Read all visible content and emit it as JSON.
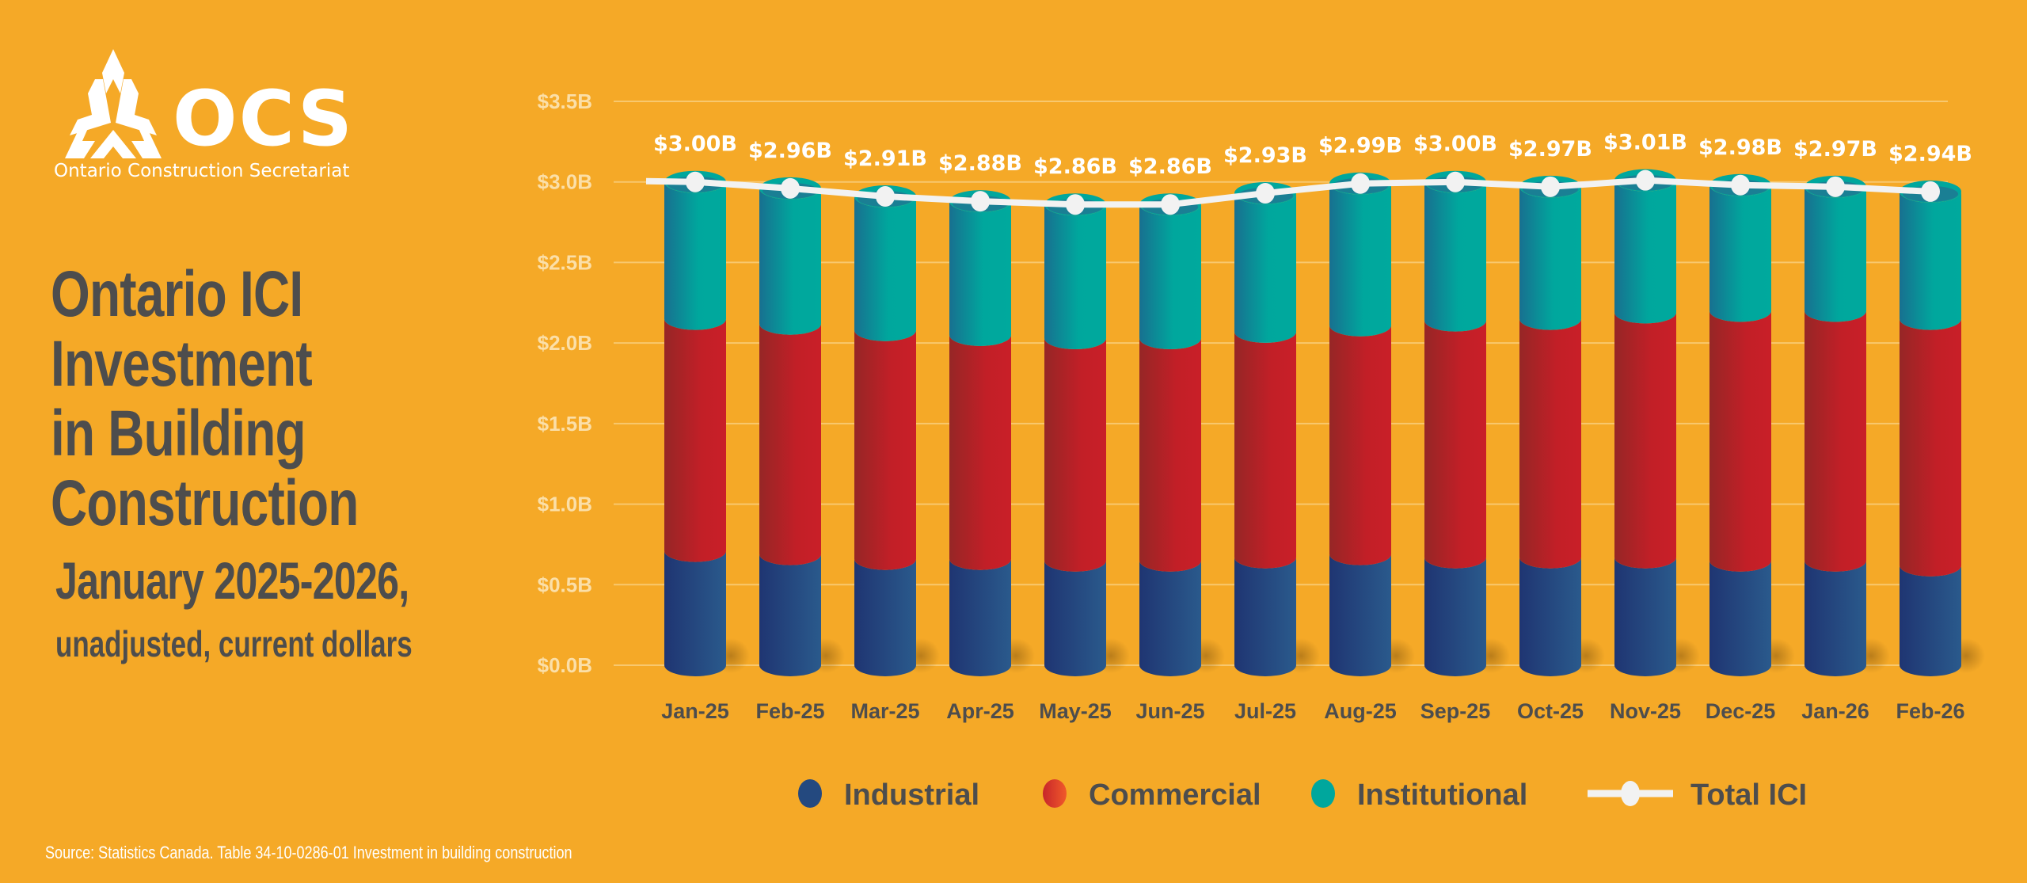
{
  "logo": {
    "wordmark": "OCS",
    "organization": "Ontario Construction Secretariat",
    "icon": "ocs-triangle-logo-icon"
  },
  "heading": {
    "title": "Ontario ICI\nInvestment\nin Building\nConstruction",
    "subtitle": "January 2025-2026,",
    "note": "unadjusted, current dollars"
  },
  "source": "Source: Statistics Canada. Table 34-10-0286-01  Investment in building construction",
  "colors": {
    "background": "#F5A927",
    "industrial": "#24497F",
    "commercial": "#C21F27",
    "institutional": "#00A79D",
    "total": "#F2F2F2",
    "text_dark": "#4D4D4D",
    "gridline": "#F8C86E"
  },
  "chart_data": {
    "type": "bar",
    "stacked": true,
    "title": "Ontario ICI Investment in Building Construction, January 2025-2026, unadjusted, current dollars",
    "xlabel": "",
    "ylabel": "",
    "ylim": [
      0,
      3.5
    ],
    "y_unit": "billions CAD",
    "grid": true,
    "y_ticks": [
      0,
      0.5,
      1.0,
      1.5,
      2.0,
      2.5,
      3.0,
      3.5
    ],
    "y_tick_labels": [
      "$0.0B",
      "$0.5B",
      "$1.0B",
      "$1.5B",
      "$2.0B",
      "$2.5B",
      "$3.0B",
      "$3.5B"
    ],
    "categories": [
      "Jan-25",
      "Feb-25",
      "Mar-25",
      "Apr-25",
      "May-25",
      "Jun-25",
      "Jul-25",
      "Aug-25",
      "Sep-25",
      "Oct-25",
      "Nov-25",
      "Dec-25",
      "Jan-26",
      "Feb-26"
    ],
    "series": [
      {
        "name": "Industrial",
        "type": "bar",
        "values": [
          0.71,
          0.69,
          0.66,
          0.66,
          0.65,
          0.65,
          0.67,
          0.69,
          0.67,
          0.67,
          0.67,
          0.65,
          0.65,
          0.62
        ]
      },
      {
        "name": "Commercial",
        "type": "bar",
        "values": [
          1.44,
          1.43,
          1.42,
          1.39,
          1.38,
          1.38,
          1.4,
          1.42,
          1.47,
          1.48,
          1.52,
          1.55,
          1.55,
          1.53
        ]
      },
      {
        "name": "Institutional",
        "type": "bar",
        "values": [
          0.85,
          0.84,
          0.83,
          0.83,
          0.83,
          0.83,
          0.86,
          0.88,
          0.86,
          0.82,
          0.82,
          0.78,
          0.77,
          0.79
        ]
      },
      {
        "name": "Total ICI",
        "type": "line",
        "values": [
          3.0,
          2.96,
          2.91,
          2.88,
          2.86,
          2.86,
          2.93,
          2.99,
          3.0,
          2.97,
          3.01,
          2.98,
          2.97,
          2.94
        ]
      }
    ],
    "data_labels": [
      "$3.00B",
      "$2.96B",
      "$2.91B",
      "$2.88B",
      "$2.86B",
      "$2.86B",
      "$2.93B",
      "$2.99B",
      "$3.00B",
      "$2.97B",
      "$3.01B",
      "$2.98B",
      "$2.97B",
      "$2.94B"
    ],
    "legend": {
      "position": "bottom",
      "entries": [
        {
          "label": "Industrial",
          "marker": "ellipse"
        },
        {
          "label": "Commercial",
          "marker": "ellipse"
        },
        {
          "label": "Institutional",
          "marker": "ellipse"
        },
        {
          "label": "Total ICI",
          "marker": "line-with-dot"
        }
      ]
    }
  }
}
